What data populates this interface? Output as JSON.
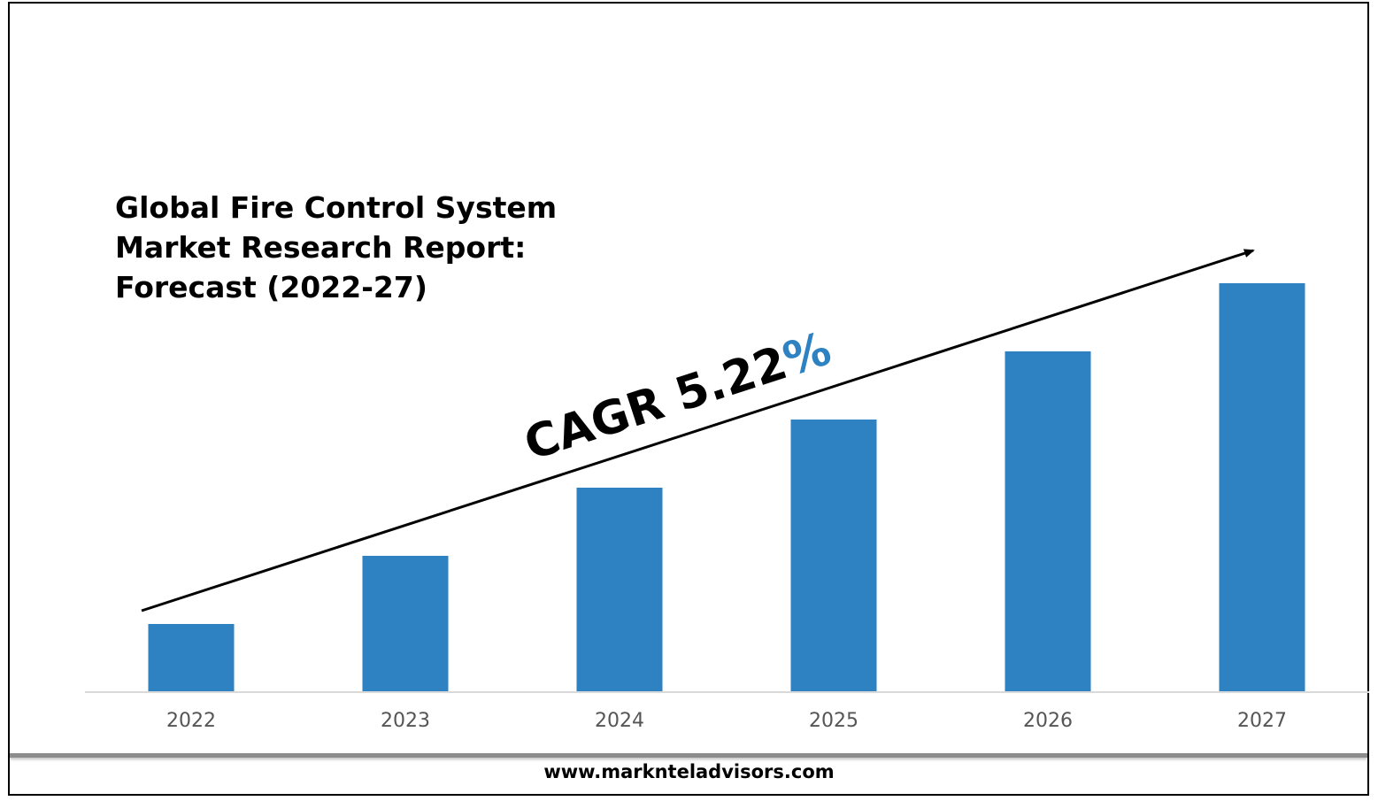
{
  "chart_data": {
    "type": "bar",
    "title_lines": [
      "Global Fire Control System",
      "Market Research Report:",
      "Forecast (2022-27)"
    ],
    "categories": [
      "2022",
      "2023",
      "2024",
      "2025",
      "2026",
      "2027"
    ],
    "values": [
      1.0,
      2.0,
      3.0,
      4.0,
      5.0,
      6.0
    ],
    "ylim": [
      0,
      6.0
    ],
    "grid": false,
    "bar_color": "#2e82c2",
    "annotation": {
      "prefix": "CAGR 5.22",
      "suffix": "%",
      "prefix_color": "#000000",
      "suffix_color": "#2e82c2"
    },
    "xlabel": "",
    "ylabel": ""
  },
  "footer": {
    "website": "www.marknteladvisors.com"
  }
}
